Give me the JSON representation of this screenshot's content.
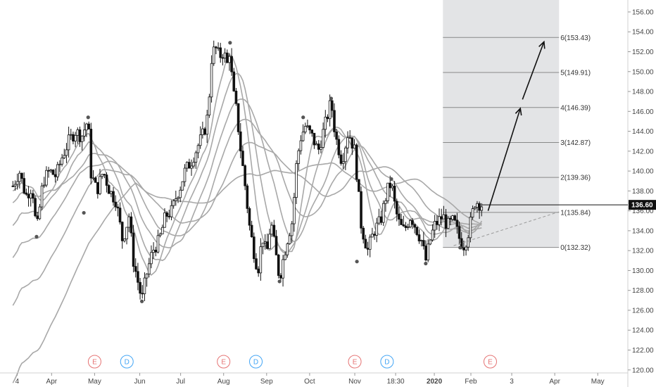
{
  "chart_data": {
    "type": "candlestick",
    "x_axis": {
      "ticks": [
        {
          "label": "4",
          "t": 0.2
        },
        {
          "label": "Apr",
          "t": 1.8
        },
        {
          "label": "May",
          "t": 3.8
        },
        {
          "label": "Jun",
          "t": 5.9
        },
        {
          "label": "Jul",
          "t": 7.8
        },
        {
          "label": "Aug",
          "t": 9.8
        },
        {
          "label": "Sep",
          "t": 11.8
        },
        {
          "label": "Oct",
          "t": 13.8
        },
        {
          "label": "Nov",
          "t": 15.9
        },
        {
          "label": "18:30",
          "t": 17.8
        },
        {
          "label": "2020",
          "t": 19.6
        },
        {
          "label": "Feb",
          "t": 21.3
        },
        {
          "label": "3",
          "t": 23.2
        },
        {
          "label": "Apr",
          "t": 25.2
        },
        {
          "label": "May",
          "t": 27.2
        }
      ],
      "range": [
        -0.6,
        28.6
      ]
    },
    "y_axis": {
      "ticks": [
        120,
        122,
        124,
        126,
        128,
        130,
        132,
        134,
        136,
        138,
        140,
        142,
        144,
        146,
        148,
        150,
        152,
        154,
        156
      ],
      "tick_labels": [
        "120.00",
        "122.00",
        "124.00",
        "126.00",
        "128.00",
        "130.00",
        "132.00",
        "134.00",
        "136.00",
        "138.00",
        "140.00",
        "142.00",
        "144.00",
        "146.00",
        "148.00",
        "150.00",
        "152.00",
        "154.00",
        "156.00"
      ],
      "range": [
        119.7,
        157.2
      ],
      "current_price": 136.6,
      "current_price_label": "136.60"
    },
    "price_path": [
      [
        0.0,
        138.5
      ],
      [
        0.3,
        140.0
      ],
      [
        0.6,
        137.5
      ],
      [
        0.9,
        138.5
      ],
      [
        1.1,
        133.8
      ],
      [
        1.4,
        139.0
      ],
      [
        1.7,
        140.0
      ],
      [
        2.0,
        139.5
      ],
      [
        2.3,
        141.5
      ],
      [
        2.6,
        143.0
      ],
      [
        2.9,
        144.0
      ],
      [
        3.2,
        143.5
      ],
      [
        3.5,
        145.2
      ],
      [
        3.6,
        140.0
      ],
      [
        3.9,
        138.0
      ],
      [
        4.2,
        140.0
      ],
      [
        4.5,
        138.0
      ],
      [
        4.8,
        137.0
      ],
      [
        5.1,
        133.0
      ],
      [
        5.4,
        135.5
      ],
      [
        5.6,
        131.0
      ],
      [
        5.8,
        129.0
      ],
      [
        6.0,
        127.0
      ],
      [
        6.2,
        129.5
      ],
      [
        6.5,
        132.0
      ],
      [
        6.8,
        133.0
      ],
      [
        7.1,
        135.5
      ],
      [
        7.4,
        136.0
      ],
      [
        7.6,
        137.5
      ],
      [
        7.8,
        138.5
      ],
      [
        8.0,
        140.0
      ],
      [
        8.3,
        141.0
      ],
      [
        8.6,
        142.5
      ],
      [
        8.9,
        144.0
      ],
      [
        9.1,
        146.0
      ],
      [
        9.2,
        151.0
      ],
      [
        9.4,
        152.5
      ],
      [
        9.6,
        151.5
      ],
      [
        9.8,
        152.0
      ],
      [
        10.0,
        150.5
      ],
      [
        10.1,
        152.7
      ],
      [
        10.2,
        148.5
      ],
      [
        10.4,
        146.0
      ],
      [
        10.6,
        142.0
      ],
      [
        10.8,
        138.5
      ],
      [
        11.0,
        134.5
      ],
      [
        11.2,
        132.0
      ],
      [
        11.4,
        130.0
      ],
      [
        11.6,
        133.5
      ],
      [
        11.8,
        131.5
      ],
      [
        12.0,
        135.0
      ],
      [
        12.2,
        132.0
      ],
      [
        12.4,
        129.2
      ],
      [
        12.6,
        131.5
      ],
      [
        12.8,
        133.5
      ],
      [
        13.0,
        135.0
      ],
      [
        13.2,
        141.0
      ],
      [
        13.4,
        143.5
      ],
      [
        13.6,
        144.5
      ],
      [
        13.9,
        143.5
      ],
      [
        14.2,
        142.0
      ],
      [
        14.5,
        144.5
      ],
      [
        14.8,
        147.0
      ],
      [
        15.0,
        143.5
      ],
      [
        15.3,
        141.0
      ],
      [
        15.6,
        144.0
      ],
      [
        15.9,
        142.0
      ],
      [
        16.2,
        134.5
      ],
      [
        16.5,
        132.0
      ],
      [
        16.8,
        134.0
      ],
      [
        17.1,
        135.0
      ],
      [
        17.4,
        138.0
      ],
      [
        17.6,
        138.8
      ],
      [
        17.8,
        136.0
      ],
      [
        18.0,
        134.5
      ],
      [
        18.2,
        134.0
      ],
      [
        18.5,
        135.5
      ],
      [
        18.8,
        134.0
      ],
      [
        19.0,
        133.0
      ],
      [
        19.2,
        131.0
      ],
      [
        19.4,
        133.0
      ],
      [
        19.6,
        134.5
      ],
      [
        19.8,
        135.0
      ],
      [
        20.0,
        135.5
      ],
      [
        20.2,
        134.5
      ],
      [
        20.5,
        135.0
      ],
      [
        20.8,
        133.0
      ],
      [
        21.0,
        132.5
      ],
      [
        21.2,
        134.0
      ],
      [
        21.5,
        137.0
      ],
      [
        21.8,
        136.6
      ]
    ],
    "extreme_markers": [
      [
        1.1,
        133.4
      ],
      [
        3.3,
        135.8
      ],
      [
        3.5,
        145.4
      ],
      [
        6.0,
        126.9
      ],
      [
        10.1,
        152.9
      ],
      [
        12.4,
        128.9
      ],
      [
        13.5,
        145.4
      ],
      [
        14.8,
        147.3
      ],
      [
        16.0,
        130.9
      ],
      [
        17.6,
        139.2
      ],
      [
        19.2,
        130.7
      ],
      [
        20.8,
        132.3
      ]
    ],
    "moving_average_lines": 6,
    "events": [
      {
        "label": "E",
        "t": 3.8,
        "color": "#e57373"
      },
      {
        "label": "D",
        "t": 5.3,
        "color": "#42a5f5"
      },
      {
        "label": "E",
        "t": 9.8,
        "color": "#e57373"
      },
      {
        "label": "D",
        "t": 11.3,
        "color": "#42a5f5"
      },
      {
        "label": "E",
        "t": 15.9,
        "color": "#e57373"
      },
      {
        "label": "D",
        "t": 17.4,
        "color": "#42a5f5"
      },
      {
        "label": "E",
        "t": 22.2,
        "color": "#e57373"
      }
    ],
    "fib_levels": [
      {
        "label": "0(132.32)",
        "price": 132.32
      },
      {
        "label": "1(135.84)",
        "price": 135.84
      },
      {
        "label": "2(139.36)",
        "price": 139.36
      },
      {
        "label": "3(142.87)",
        "price": 142.87
      },
      {
        "label": "4(146.39)",
        "price": 146.39
      },
      {
        "label": "5(149.91)",
        "price": 149.91
      },
      {
        "label": "6(153.43)",
        "price": 153.43
      }
    ],
    "fib_zone": {
      "t_start": 20.0,
      "t_end": 25.4
    },
    "projection_arrows": [
      {
        "from": [
          22.1,
          136.0
        ],
        "to": [
          23.6,
          146.3
        ]
      },
      {
        "from": [
          23.7,
          147.2
        ],
        "to": [
          24.7,
          153.0
        ]
      }
    ],
    "dashed_trendline": {
      "from": [
        20.5,
        132.5
      ],
      "to": [
        25.4,
        135.9
      ]
    },
    "colors": {
      "candle": "#111111",
      "ma_line": "#a8a8a8",
      "fib_zone": "#e3e4e6",
      "fib_line": "#888888",
      "marker": "#555555",
      "arrow": "#111111",
      "price_tag": "#111111"
    }
  }
}
